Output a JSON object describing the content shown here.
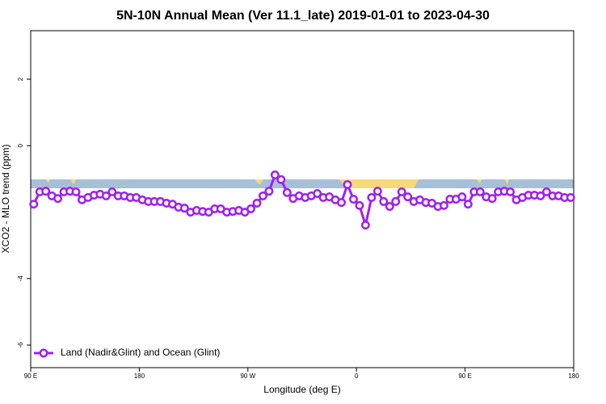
{
  "chart_data": {
    "type": "line",
    "title": "5N-10N Annual Mean (Ver 11.1_late)   2019-01-01 to 2023-04-30",
    "x_label": "Longitude (deg E)",
    "y_label": "XCO2 - MLO trend (ppm)",
    "x": [
      92.5,
      97.5,
      102.5,
      107.5,
      112.5,
      117.5,
      122.5,
      127.5,
      132.5,
      137.5,
      142.5,
      147.5,
      152.5,
      157.5,
      162.5,
      167.5,
      172.5,
      177.5,
      182.5,
      187.5,
      192.5,
      197.5,
      202.5,
      207.5,
      212.5,
      217.5,
      222.5,
      227.5,
      232.5,
      237.5,
      242.5,
      247.5,
      252.5,
      257.5,
      262.5,
      267.5,
      272.5,
      277.5,
      282.5,
      287.5,
      292.5,
      297.5,
      302.5,
      307.5,
      312.5,
      317.5,
      322.5,
      327.5,
      332.5,
      337.5,
      342.5,
      347.5,
      352.5,
      357.5,
      362.5,
      367.5,
      372.5,
      377.5,
      382.5,
      387.5,
      392.5,
      397.5,
      402.5,
      407.5,
      412.5,
      417.5,
      422.5,
      427.5,
      432.5,
      437.5,
      442.5,
      447.5,
      452.5,
      457.5,
      462.5,
      467.5,
      472.5,
      477.5,
      482.5,
      487.5,
      492.5,
      497.5,
      502.5,
      507.5,
      512.5,
      517.5,
      522.5,
      527.5,
      532.5,
      537.5
    ],
    "series": [
      {
        "name": "Land (Nadir&Glint) and Ocean (Glint)",
        "color": "#a020f0",
        "values": [
          -1.76,
          -1.39,
          -1.37,
          -1.51,
          -1.59,
          -1.39,
          -1.37,
          -1.39,
          -1.63,
          -1.56,
          -1.49,
          -1.46,
          -1.51,
          -1.39,
          -1.51,
          -1.51,
          -1.56,
          -1.56,
          -1.63,
          -1.68,
          -1.68,
          -1.68,
          -1.73,
          -1.76,
          -1.85,
          -1.88,
          -2.0,
          -1.95,
          -1.98,
          -2.0,
          -1.9,
          -1.9,
          -2.0,
          -1.98,
          -1.95,
          -2.0,
          -1.9,
          -1.73,
          -1.51,
          -1.37,
          -0.88,
          -1.02,
          -1.41,
          -1.59,
          -1.51,
          -1.56,
          -1.51,
          -1.44,
          -1.56,
          -1.54,
          -1.63,
          -1.71,
          -1.17,
          -1.61,
          -1.8,
          -2.39,
          -1.56,
          -1.37,
          -1.68,
          -1.83,
          -1.68,
          -1.39,
          -1.54,
          -1.68,
          -1.63,
          -1.71,
          -1.73,
          -1.83,
          -1.8,
          -1.61,
          -1.61,
          -1.54,
          -1.76,
          -1.39,
          -1.39,
          -1.54,
          -1.59,
          -1.39,
          -1.37,
          -1.39,
          -1.63,
          -1.56,
          -1.49,
          -1.49,
          -1.51,
          -1.39,
          -1.51,
          -1.51,
          -1.56,
          -1.56
        ]
      }
    ],
    "xlim": [
      90,
      540
    ],
    "xticks": [
      {
        "value": 90,
        "label": "90 E"
      },
      180,
      {
        "value": 270,
        "label": "90 W"
      },
      {
        "value": 360,
        "label": "0"
      },
      {
        "value": 450,
        "label": "90 E"
      },
      {
        "value": 540,
        "label": "180"
      }
    ],
    "ylim": [
      -6.68,
      3.46
    ],
    "yticks": [
      -6,
      -4,
      0,
      2
    ],
    "legend": "bottom-left"
  }
}
